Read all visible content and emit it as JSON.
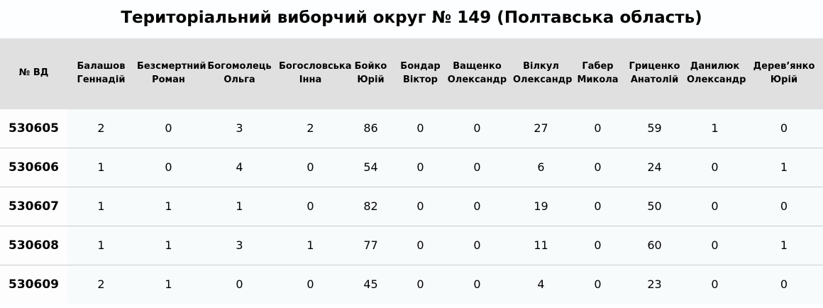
{
  "title": "Територіальний виборчий округ № 149 (Полтавська область)",
  "table": {
    "id_header": "№ ВД",
    "candidate_headers": [
      "Балашов\nГеннадій",
      "Безсмертний\nРоман",
      "Богомолець\nОльга",
      "Богословська\nІнна",
      "Бойко\nЮрій",
      "Бондар\nВіктор",
      "Ващенко\nОлександр",
      "Вілкул\nОлександр",
      "Габер\nМикола",
      "Гриценко\nАнатолій",
      "Данилюк\nОлександр",
      "Дерев’янко\nЮрій"
    ],
    "rows": [
      {
        "id": "530605",
        "values": [
          "2",
          "0",
          "3",
          "2",
          "86",
          "0",
          "0",
          "27",
          "0",
          "59",
          "1",
          "0"
        ]
      },
      {
        "id": "530606",
        "values": [
          "1",
          "0",
          "4",
          "0",
          "54",
          "0",
          "0",
          "6",
          "0",
          "24",
          "0",
          "1"
        ]
      },
      {
        "id": "530607",
        "values": [
          "1",
          "1",
          "1",
          "0",
          "82",
          "0",
          "0",
          "19",
          "0",
          "50",
          "0",
          "0"
        ]
      },
      {
        "id": "530608",
        "values": [
          "1",
          "1",
          "3",
          "1",
          "77",
          "0",
          "0",
          "11",
          "0",
          "60",
          "0",
          "1"
        ]
      },
      {
        "id": "530609",
        "values": [
          "2",
          "1",
          "0",
          "0",
          "45",
          "0",
          "0",
          "4",
          "0",
          "23",
          "0",
          "0"
        ]
      }
    ]
  },
  "colors": {
    "header_bg": "#e0e0e0",
    "row_bg": "#f7fbfc",
    "id_cell_bg": "#fdfdfd",
    "row_divider": "#cccccc",
    "title_text": "#000000"
  }
}
